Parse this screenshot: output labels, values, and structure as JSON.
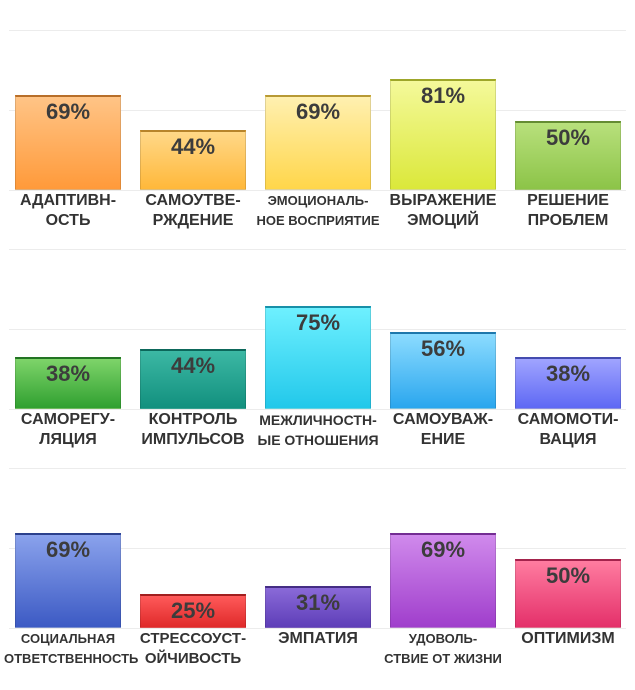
{
  "chart_data": [
    {
      "type": "bar",
      "categories": [
        [
          "АДАПТИВН-",
          "ОСТЬ"
        ],
        [
          "САМОУТВЕ-",
          "РЖДЕНИЕ"
        ],
        [
          "ЭМОЦИОНАЛЬ-",
          "НОЕ ВОСПРИЯТИЕ"
        ],
        [
          "ВЫРАЖЕНИЕ",
          "ЭМОЦИЙ"
        ],
        [
          "РЕШЕНИЕ",
          "ПРОБЛЕМ"
        ]
      ],
      "values": [
        69,
        44,
        69,
        81,
        50
      ],
      "value_labels": [
        "69%",
        "44%",
        "69%",
        "81%",
        "50%"
      ],
      "colors": [
        [
          "#ffc486",
          "#ff9a3a"
        ],
        [
          "#ffd888",
          "#ffb83a"
        ],
        [
          "#fff0b0",
          "#ffd64a"
        ],
        [
          "#f4f99a",
          "#dbe83a"
        ],
        [
          "#b8e07c",
          "#8cc448"
        ]
      ],
      "ylim": [
        0,
        100
      ],
      "grid": true
    },
    {
      "type": "bar",
      "categories": [
        [
          "САМОРЕГУ-",
          "ЛЯЦИЯ"
        ],
        [
          "КОНТРОЛЬ",
          "ИМПУЛЬСОВ"
        ],
        [
          "МЕЖЛИЧНОСТН-",
          "ЫЕ ОТНОШЕНИЯ"
        ],
        [
          "САМОУВАЖ-",
          "ЕНИЕ"
        ],
        [
          "САМОМОТИ-",
          "ВАЦИЯ"
        ]
      ],
      "values": [
        38,
        44,
        75,
        56,
        38
      ],
      "value_labels": [
        "38%",
        "44%",
        "75%",
        "56%",
        "38%"
      ],
      "colors": [
        [
          "#7ed46a",
          "#30a030"
        ],
        [
          "#3cb8a4",
          "#12907e"
        ],
        [
          "#6ef0ff",
          "#22c8ea"
        ],
        [
          "#8cdcff",
          "#2aa6ee"
        ],
        [
          "#a0a4ff",
          "#5e68f4"
        ]
      ],
      "ylim": [
        0,
        100
      ],
      "grid": true
    },
    {
      "type": "bar",
      "categories": [
        [
          "СОЦИАЛЬНАЯ",
          "ОТВЕТСТВЕННОСТЬ"
        ],
        [
          "СТРЕССОУСТ-",
          "ОЙЧИВОСТЬ"
        ],
        [
          "ЭМПАТИЯ"
        ],
        [
          "УДОВОЛЬ-",
          "СТВИЕ ОТ ЖИЗНИ"
        ],
        [
          "ОПТИМИЗМ"
        ]
      ],
      "values": [
        69,
        25,
        31,
        69,
        50
      ],
      "value_labels": [
        "69%",
        "25%",
        "31%",
        "69%",
        "50%"
      ],
      "colors": [
        [
          "#8aa2ec",
          "#3c5ac4"
        ],
        [
          "#ff5a5a",
          "#e02a2a"
        ],
        [
          "#8a6ad8",
          "#5e3eb8"
        ],
        [
          "#d08aec",
          "#a03ecc"
        ],
        [
          "#ff7ca0",
          "#e4306a"
        ]
      ],
      "ylim": [
        0,
        100
      ],
      "grid": true
    }
  ]
}
